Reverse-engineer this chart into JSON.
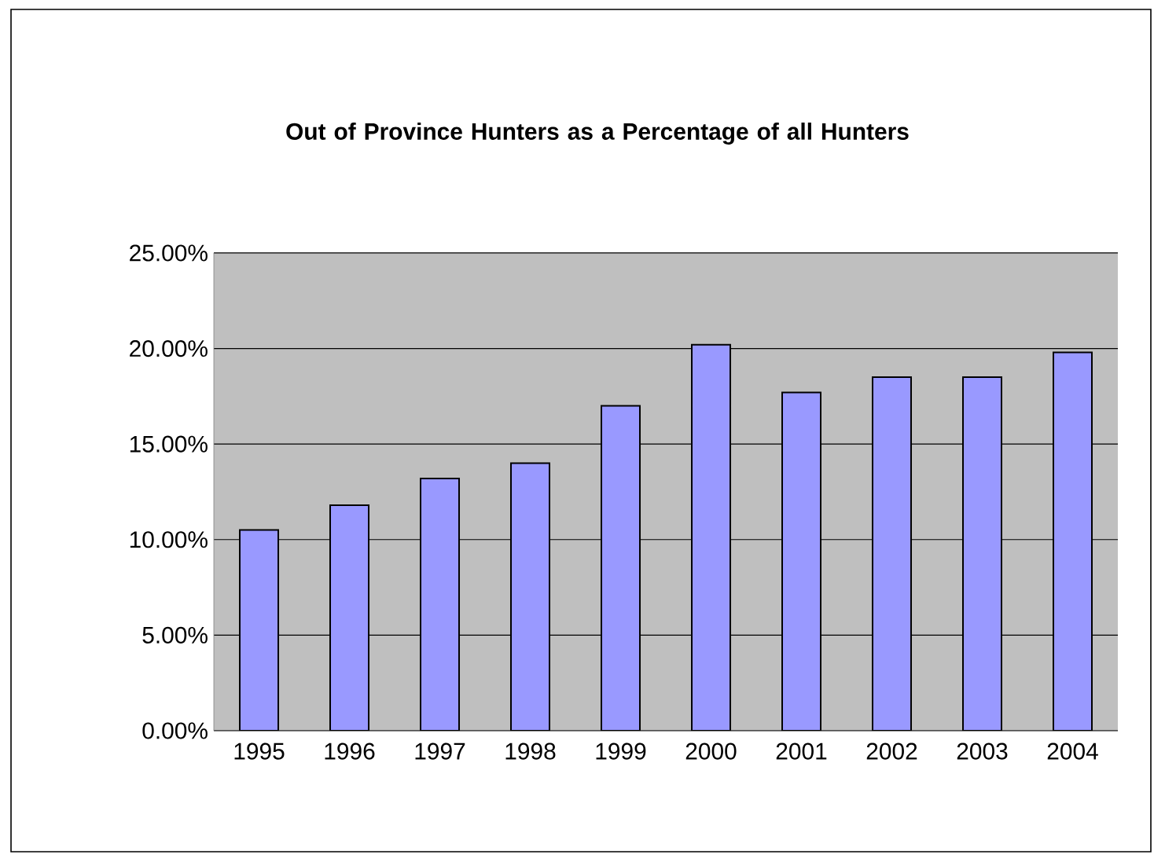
{
  "chart_data": {
    "type": "bar",
    "title": "Out of Province Hunters as a Percentage of all Hunters",
    "categories": [
      "1995",
      "1996",
      "1997",
      "1998",
      "1999",
      "2000",
      "2001",
      "2002",
      "2003",
      "2004"
    ],
    "values": [
      10.5,
      11.8,
      13.2,
      14.0,
      17.0,
      20.2,
      17.7,
      18.5,
      18.5,
      19.8
    ],
    "color": "#9999ff",
    "ylim": [
      0,
      25
    ],
    "yticks": [
      {
        "value": 0,
        "label": "0.00%"
      },
      {
        "value": 5,
        "label": "5.00%"
      },
      {
        "value": 10,
        "label": "10.00%"
      },
      {
        "value": 15,
        "label": "15.00%"
      },
      {
        "value": 20,
        "label": "20.00%"
      },
      {
        "value": 25,
        "label": "25.00%"
      }
    ],
    "grid": "y"
  }
}
